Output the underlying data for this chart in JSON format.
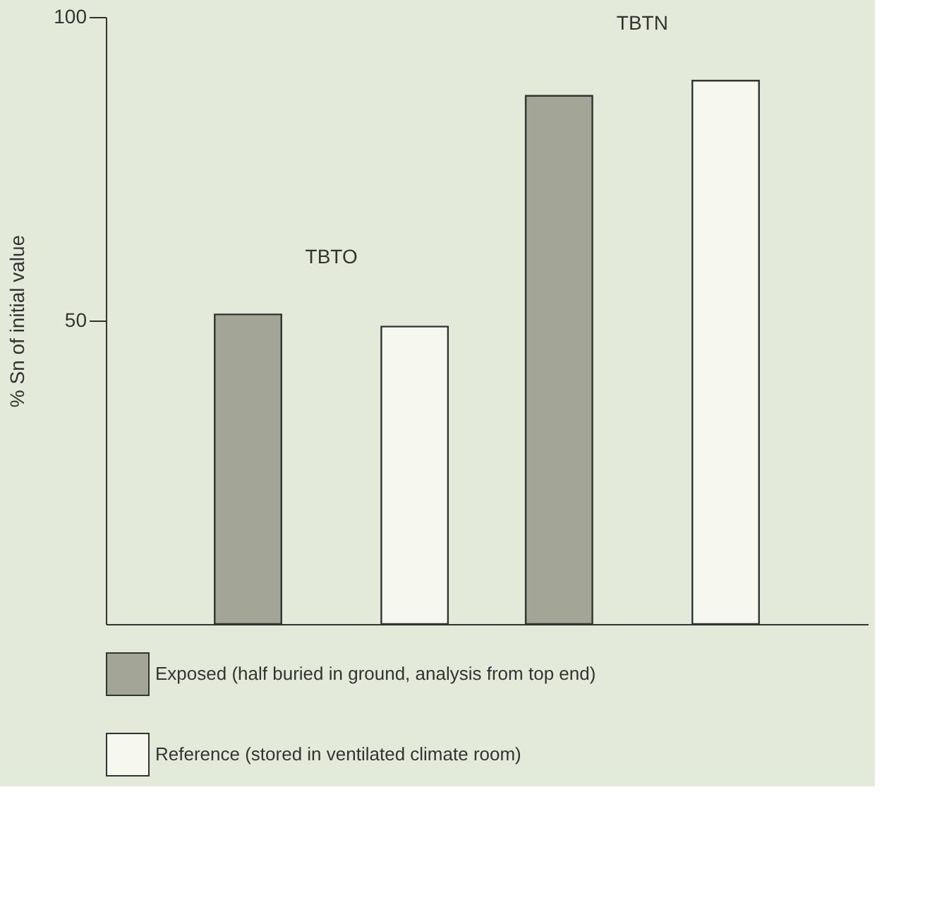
{
  "chart_data": {
    "type": "bar",
    "ylabel": "% Sn of initial value",
    "categories": [
      "TBTO",
      "TBTN"
    ],
    "series": [
      {
        "name": "Exposed (half buried in ground, analysis from top end)",
        "color": "#a3a596",
        "values": [
          51,
          87
        ]
      },
      {
        "name": "Reference (stored in ventilated climate room)",
        "color": "#f6f8f0",
        "values": [
          49,
          89.5
        ]
      }
    ],
    "ylim": [
      0,
      100
    ],
    "yticks": [
      50,
      100
    ],
    "grid": false,
    "legend": "bottom left"
  }
}
